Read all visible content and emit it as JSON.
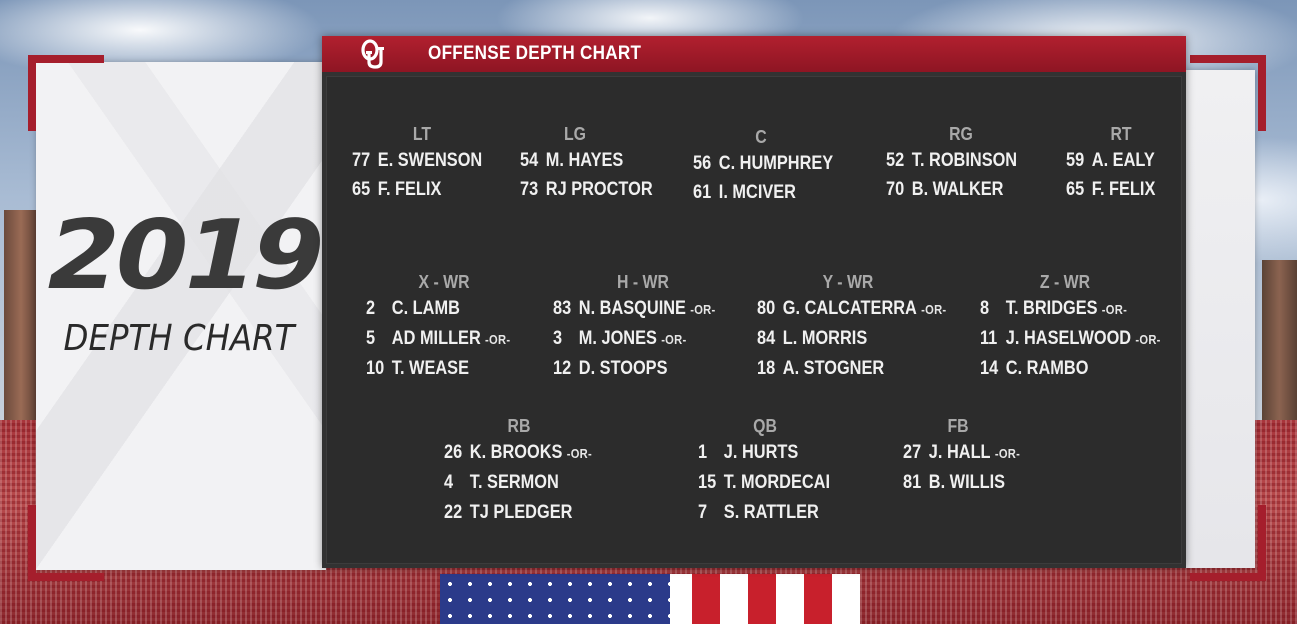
{
  "title_card": {
    "year": "2019",
    "subtitle": "DEPTH CHART"
  },
  "header": {
    "logo_icon": "oklahoma-ou-logo-icon",
    "title": "OFFENSE DEPTH CHART",
    "accent_color": "#a51e2c"
  },
  "offensive_line": {
    "lt": {
      "label": "LT",
      "players": [
        {
          "num": "77",
          "name": "E. SWENSON",
          "or": ""
        },
        {
          "num": "65",
          "name": "F. FELIX",
          "or": ""
        }
      ]
    },
    "lg": {
      "label": "LG",
      "players": [
        {
          "num": "54",
          "name": "M. HAYES",
          "or": ""
        },
        {
          "num": "73",
          "name": "RJ PROCTOR",
          "or": ""
        }
      ]
    },
    "c": {
      "label": "C",
      "players": [
        {
          "num": "56",
          "name": "C. HUMPHREY",
          "or": ""
        },
        {
          "num": "61",
          "name": "I. MCIVER",
          "or": ""
        }
      ]
    },
    "rg": {
      "label": "RG",
      "players": [
        {
          "num": "52",
          "name": "T. ROBINSON",
          "or": ""
        },
        {
          "num": "70",
          "name": "B. WALKER",
          "or": ""
        }
      ]
    },
    "rt": {
      "label": "RT",
      "players": [
        {
          "num": "59",
          "name": "A. EALY",
          "or": ""
        },
        {
          "num": "65",
          "name": "F. FELIX",
          "or": ""
        }
      ]
    }
  },
  "receivers": {
    "x": {
      "label": "X - WR",
      "players": [
        {
          "num": "2",
          "name": "C. LAMB",
          "or": ""
        },
        {
          "num": "5",
          "name": "AD MILLER",
          "or": "-OR-"
        },
        {
          "num": "10",
          "name": "T. WEASE",
          "or": ""
        }
      ]
    },
    "h": {
      "label": "H - WR",
      "players": [
        {
          "num": "83",
          "name": "N. BASQUINE",
          "or": "-OR-"
        },
        {
          "num": "3",
          "name": "M. JONES",
          "or": "-OR-"
        },
        {
          "num": "12",
          "name": "D. STOOPS",
          "or": ""
        }
      ]
    },
    "y": {
      "label": "Y - WR",
      "players": [
        {
          "num": "80",
          "name": "G. CALCATERRA",
          "or": "-OR-"
        },
        {
          "num": "84",
          "name": "L.  MORRIS",
          "or": ""
        },
        {
          "num": "18",
          "name": "A. STOGNER",
          "or": ""
        }
      ]
    },
    "z": {
      "label": "Z - WR",
      "players": [
        {
          "num": "8",
          "name": "T. BRIDGES",
          "or": "-OR-"
        },
        {
          "num": "11",
          "name": "J. HASELWOOD",
          "or": "-OR-"
        },
        {
          "num": "14",
          "name": "C. RAMBO",
          "or": ""
        }
      ]
    }
  },
  "backfield": {
    "rb": {
      "label": "RB",
      "players": [
        {
          "num": "26",
          "name": "K.  BROOKS",
          "or": "-OR-"
        },
        {
          "num": "4",
          "name": "T. SERMON",
          "or": ""
        },
        {
          "num": "22",
          "name": "TJ  PLEDGER",
          "or": ""
        }
      ]
    },
    "qb": {
      "label": "QB",
      "players": [
        {
          "num": "1",
          "name": "J. HURTS",
          "or": ""
        },
        {
          "num": "15",
          "name": "T. MORDECAI",
          "or": ""
        },
        {
          "num": "7",
          "name": "S. RATTLER",
          "or": ""
        }
      ]
    },
    "fb": {
      "label": "FB",
      "players": [
        {
          "num": "27",
          "name": "J. HALL",
          "or": "-OR-"
        },
        {
          "num": "81",
          "name": "B. WILLIS",
          "or": ""
        }
      ]
    }
  }
}
